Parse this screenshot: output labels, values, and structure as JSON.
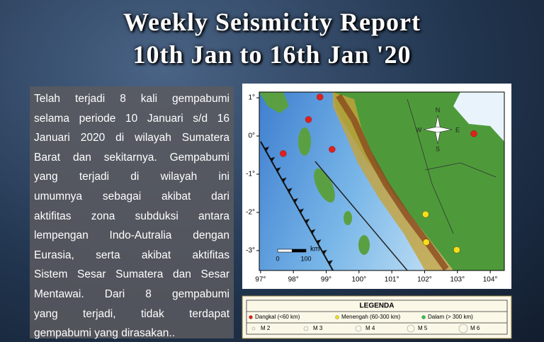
{
  "header": {
    "title_line1": "Weekly Seismicity Report",
    "title_line2": "10th Jan to 16th Jan '20"
  },
  "description": {
    "lines": [
      "Telah terjadi 8 kali gempabumi",
      "selama periode 10 Januari s/d 16",
      "Januari 2020 di wilayah Sumatera",
      "Barat dan sekitarnya. Gempabumi",
      "yang terjadi di wilayah ini",
      "umumnya sebagai akibat dari",
      "aktifitas zona subduksi antara",
      "lempengan Indo-Autralia dengan",
      "Eurasia, serta akibat aktifitas",
      "Sistem Sesar Sumatera dan Sesar",
      "Mentawai. Dari 8 gempabumi",
      "yang terjadi, tidak terdapat",
      "gempabumi yang dirasakan.."
    ]
  },
  "map": {
    "xlim": [
      96.96,
      104.43
    ],
    "ylim": [
      -3.52,
      1.15
    ],
    "xticks": [
      {
        "value": 97,
        "label": "97°"
      },
      {
        "value": 98,
        "label": "98°"
      },
      {
        "value": 99,
        "label": "99°"
      },
      {
        "value": 100,
        "label": "100°"
      },
      {
        "value": 101,
        "label": "101°"
      },
      {
        "value": 102,
        "label": "102°"
      },
      {
        "value": 103,
        "label": "103°"
      },
      {
        "value": 104,
        "label": "104°"
      }
    ],
    "yticks": [
      {
        "value": 1,
        "label": "1°"
      },
      {
        "value": 0,
        "label": "0°"
      },
      {
        "value": -1,
        "label": "-1°"
      },
      {
        "value": -2,
        "label": "-2°"
      },
      {
        "value": -3,
        "label": "-3°"
      }
    ],
    "scale": {
      "unit": "km",
      "start": "0",
      "end": "100"
    },
    "compass": {
      "n": "N",
      "e": "E",
      "s": "S",
      "w": "W"
    },
    "events": [
      {
        "lon": 98.81,
        "lat": 1.02,
        "color": "#e0201c"
      },
      {
        "lon": 98.46,
        "lat": 0.43,
        "color": "#e0201c"
      },
      {
        "lon": 97.69,
        "lat": -0.46,
        "color": "#e0201c"
      },
      {
        "lon": 99.18,
        "lat": -0.35,
        "color": "#e0201c"
      },
      {
        "lon": 103.5,
        "lat": 0.06,
        "color": "#e0201c"
      },
      {
        "lon": 102.03,
        "lat": -2.05,
        "color": "#f2e01a"
      },
      {
        "lon": 102.05,
        "lat": -2.78,
        "color": "#f2e01a"
      },
      {
        "lon": 102.98,
        "lat": -2.98,
        "color": "#f2e01a"
      }
    ]
  },
  "legend": {
    "title": "LEGENDA",
    "depth": [
      {
        "label": "Dangkal (<60 km)",
        "color": "#e0201c"
      },
      {
        "label": "Menengah (60-300 km)",
        "color": "#f2e01a"
      },
      {
        "label": "Dalam (> 300 km)",
        "color": "#2ec24a"
      }
    ],
    "magnitude": [
      "M 2",
      "M 3",
      "M 4",
      "M 5",
      "M 6"
    ]
  }
}
